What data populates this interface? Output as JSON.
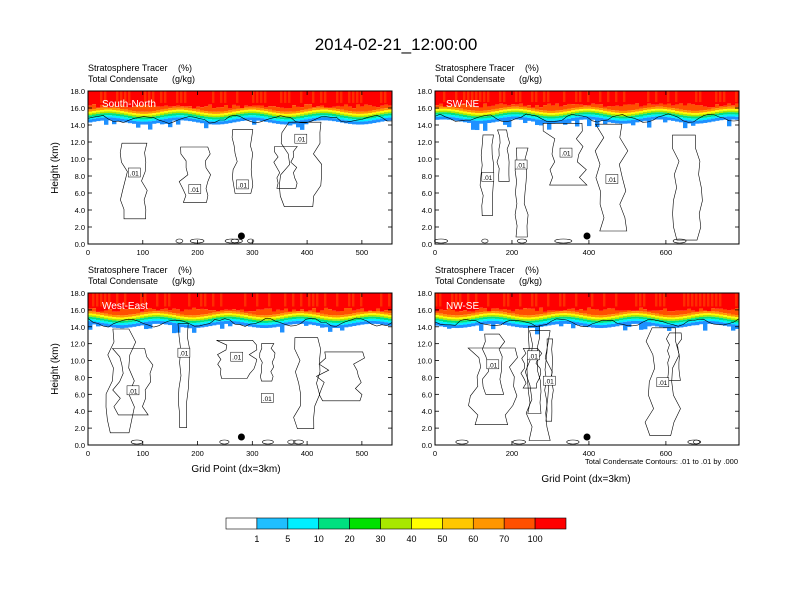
{
  "title": "2014-02-21_12:00:00",
  "colors": {
    "levels": [
      "#ffffff",
      "#1e90ff",
      "#1fbfff",
      "#00f0ff",
      "#00e080",
      "#00e000",
      "#a8e800",
      "#ffff00",
      "#ffc800",
      "#ff9600",
      "#ff5000",
      "#ff0000"
    ],
    "contour": "#000000",
    "frame": "#000000"
  },
  "colorbar": {
    "labels": [
      "1",
      "5",
      "10",
      "20",
      "30",
      "40",
      "50",
      "60",
      "70",
      "100"
    ]
  },
  "contour_note": "Total Condensate Contours: .01 to .01 by .000",
  "chart_data": [
    {
      "type": "heatmap",
      "panel": "South-North",
      "subtitle_left": "Stratosphere Tracer",
      "subtitle_units": "(%)",
      "subtitle2_left": "Total Condensate",
      "subtitle2_units": "(g/kg)",
      "ylabel": "Height (km)",
      "xlabel": "",
      "xlim": [
        0,
        555
      ],
      "ylim": [
        0,
        18
      ],
      "xticks": [
        0,
        100,
        200,
        300,
        400,
        500
      ],
      "yticks": [
        "0.0",
        "2.0",
        "4.0",
        "6.0",
        "8.0",
        "10.0",
        "12.0",
        "14.0",
        "16.0",
        "18.0"
      ],
      "tropopause_km": 15.2,
      "marker_x": 280,
      "contour_label": ".01"
    },
    {
      "type": "heatmap",
      "panel": "SW-NE",
      "subtitle_left": "Stratosphere Tracer",
      "subtitle_units": "(%)",
      "subtitle2_left": "Total Condensate",
      "subtitle2_units": "(g/kg)",
      "ylabel": "",
      "xlabel": "",
      "xlim": [
        0,
        790
      ],
      "ylim": [
        0,
        18
      ],
      "xticks": [
        0,
        200,
        400,
        600
      ],
      "yticks": [
        "0.0",
        "2.0",
        "4.0",
        "6.0",
        "8.0",
        "10.0",
        "12.0",
        "14.0",
        "16.0",
        "18.0"
      ],
      "tropopause_km": 15.3,
      "marker_x": 395,
      "contour_label": ".01"
    },
    {
      "type": "heatmap",
      "panel": "West-East",
      "subtitle_left": "Stratosphere Tracer",
      "subtitle_units": "(%)",
      "subtitle2_left": "Total Condensate",
      "subtitle2_units": "(g/kg)",
      "ylabel": "Height (km)",
      "xlabel": "Grid Point (dx=3km)",
      "xlim": [
        0,
        555
      ],
      "ylim": [
        0,
        18
      ],
      "xticks": [
        0,
        100,
        200,
        300,
        400,
        500
      ],
      "yticks": [
        "0.0",
        "2.0",
        "4.0",
        "6.0",
        "8.0",
        "10.0",
        "12.0",
        "14.0",
        "16.0",
        "18.0"
      ],
      "tropopause_km": 15.0,
      "marker_x": 280,
      "contour_label": ".01"
    },
    {
      "type": "heatmap",
      "panel": "NW-SE",
      "subtitle_left": "Stratosphere Tracer",
      "subtitle_units": "(%)",
      "subtitle2_left": "Total Condensate",
      "subtitle2_units": "(g/kg)",
      "ylabel": "",
      "xlabel": "Grid Point (dx=3km)",
      "xlim": [
        0,
        790
      ],
      "ylim": [
        0,
        18
      ],
      "xticks": [
        0,
        200,
        400,
        600
      ],
      "yticks": [
        "0.0",
        "2.0",
        "4.0",
        "6.0",
        "8.0",
        "10.0",
        "12.0",
        "14.0",
        "16.0",
        "18.0"
      ],
      "tropopause_km": 15.0,
      "marker_x": 395,
      "contour_label": ".01"
    }
  ]
}
